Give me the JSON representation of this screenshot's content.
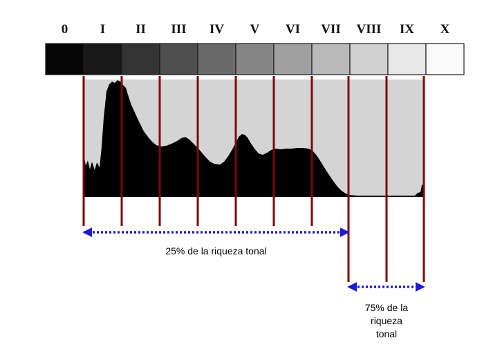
{
  "zones": {
    "labels": [
      "0",
      "I",
      "II",
      "III",
      "IV",
      "V",
      "VI",
      "VII",
      "VIII",
      "IX",
      "X"
    ],
    "swatch_colors": [
      "#050505",
      "#181818",
      "#333333",
      "#4e4e4e",
      "#6a6a6a",
      "#858585",
      "#a0a0a0",
      "#b9b9b9",
      "#d1d1d1",
      "#e8e8e8",
      "#fafafa"
    ]
  },
  "histogram": {
    "background_color": "#d4d4d4",
    "fill_color": "#000000"
  },
  "markers": {
    "color": "#7a0a0a"
  },
  "spans": {
    "color": "#1a1ad6",
    "left_caption": "25% de la riqueza tonal",
    "right_caption_lines": [
      "75% de la",
      "riqueza",
      "tonal"
    ]
  }
}
